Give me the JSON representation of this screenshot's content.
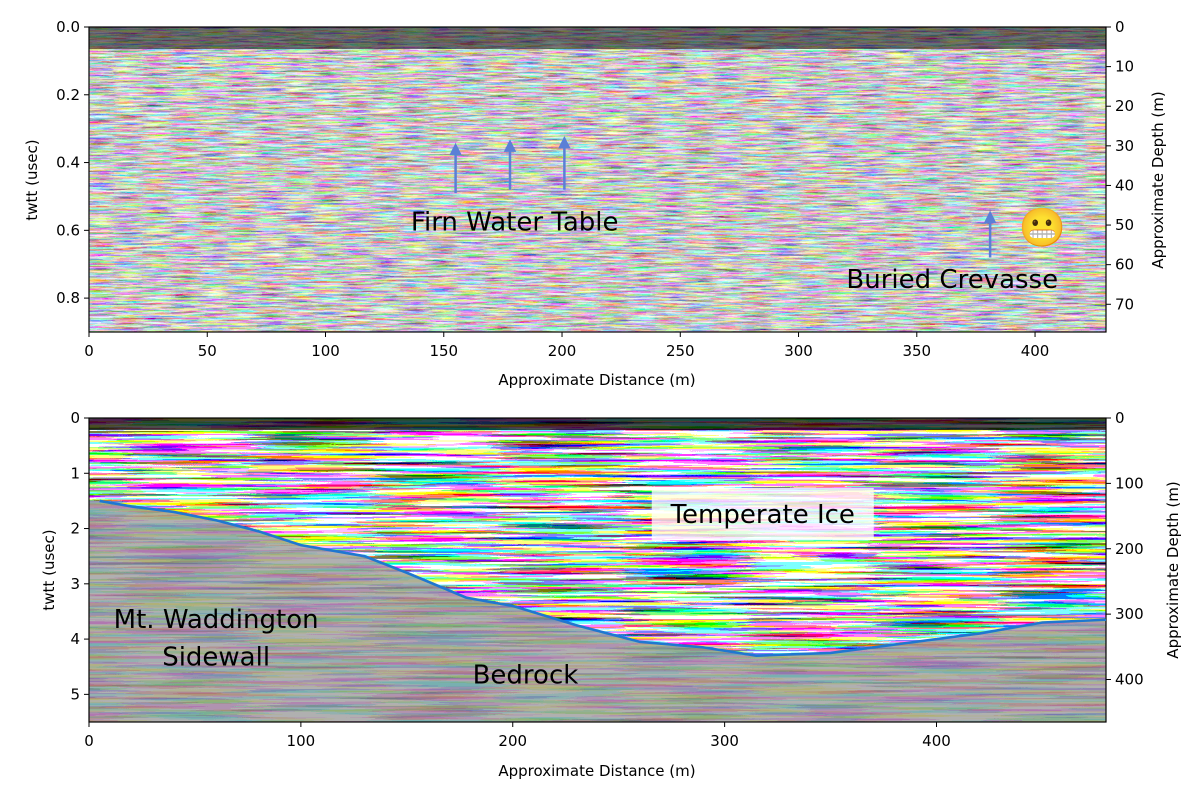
{
  "chart_data": [
    {
      "type": "heatmap",
      "description_kind": "radargram",
      "xlabel": "Approximate Distance (m)",
      "ylabel": "twtt (usec)",
      "ylabel_right": "Approximate Depth (m)",
      "xlim": [
        0,
        430
      ],
      "ylim": [
        0.9,
        0.0
      ],
      "x_ticks": [
        "0",
        "50",
        "100",
        "150",
        "200",
        "250",
        "300",
        "350",
        "400"
      ],
      "y_ticks": [
        "0.0",
        "0.2",
        "0.4",
        "0.6",
        "0.8"
      ],
      "y_ticks_right": [
        "0",
        "10",
        "20",
        "30",
        "40",
        "50",
        "60",
        "70"
      ],
      "arrows": [
        {
          "x": 155,
          "y_from": 0.49,
          "y_to": 0.36
        },
        {
          "x": 178,
          "y_from": 0.48,
          "y_to": 0.35
        },
        {
          "x": 201,
          "y_from": 0.48,
          "y_to": 0.34
        },
        {
          "x": 381,
          "y_from": 0.68,
          "y_to": 0.56
        }
      ],
      "arrow_color": "#5a7fd6",
      "annotations": [
        {
          "text": "Firn Water Table",
          "x": 180,
          "y": 0.6
        },
        {
          "text": "Buried Crevasse",
          "x": 365,
          "y": 0.77
        }
      ],
      "emoji": {
        "text": "😬",
        "x": 403,
        "y": 0.63
      }
    },
    {
      "type": "heatmap",
      "description_kind": "radargram",
      "xlabel": "Approximate Distance (m)",
      "ylabel": "twtt (usec)",
      "ylabel_right": "Approximate Depth (m)",
      "xlim": [
        0,
        480
      ],
      "ylim": [
        5.5,
        0
      ],
      "x_ticks": [
        "0",
        "100",
        "200",
        "300",
        "400"
      ],
      "y_ticks": [
        "0",
        "1",
        "2",
        "3",
        "4",
        "5"
      ],
      "y_ticks_right": [
        "0",
        "100",
        "200",
        "300",
        "400"
      ],
      "series": [
        {
          "x": [
            5,
            20,
            40,
            60,
            80,
            100,
            130,
            150,
            178,
            200,
            230,
            260,
            290,
            315,
            350,
            390,
            420,
            450,
            480
          ],
          "y": [
            1.5,
            1.6,
            1.7,
            1.85,
            2.05,
            2.3,
            2.5,
            2.8,
            3.25,
            3.4,
            3.75,
            4.05,
            4.15,
            4.3,
            4.25,
            4.05,
            3.9,
            3.7,
            3.65
          ],
          "color": "#1f77d0"
        }
      ],
      "annotations": [
        {
          "text": "Temperate Ice",
          "x": 318,
          "y": 1.9,
          "boxed": true
        },
        {
          "text": "Mt. Waddington",
          "x": 60,
          "y": 3.8
        },
        {
          "text": "Sidewall",
          "x": 60,
          "y": 4.48
        },
        {
          "text": "Bedrock",
          "x": 206,
          "y": 4.8
        }
      ]
    }
  ]
}
